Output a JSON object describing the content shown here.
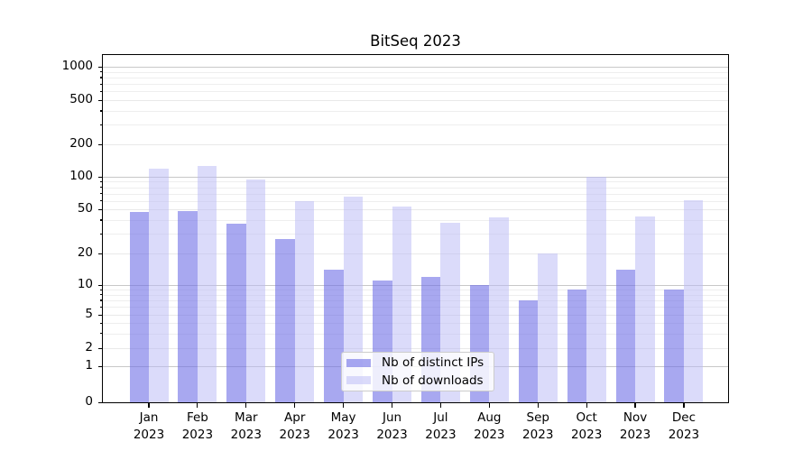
{
  "title": "BitSeq 2023",
  "colors": {
    "bar_ips": "rgba(110,110,230,0.6)",
    "bar_downloads": "rgba(183,183,245,0.5)",
    "grid_major": "#c8c8c8",
    "grid_mid": "#e9e9e9",
    "grid_minor": "#eeeeee",
    "spine": "#000000",
    "legend_border": "#cccccc"
  },
  "chart_data": {
    "type": "bar",
    "title": "BitSeq 2023",
    "categories": [
      "Jan",
      "Feb",
      "Mar",
      "Apr",
      "May",
      "Jun",
      "Jul",
      "Aug",
      "Sep",
      "Oct",
      "Nov",
      "Dec"
    ],
    "category_year": "2023",
    "series": [
      {
        "name": "Nb of distinct IPs",
        "color": "rgba(110,110,230,0.6)",
        "values": [
          47,
          48,
          37,
          27,
          14,
          11,
          12,
          10,
          7,
          9,
          14,
          9
        ]
      },
      {
        "name": "Nb of downloads",
        "color": "rgba(183,183,245,0.5)",
        "values": [
          120,
          125,
          94,
          60,
          66,
          53,
          38,
          42,
          20,
          100,
          43,
          61
        ]
      }
    ],
    "xlabel": "",
    "ylabel": "",
    "yscale": "symlog",
    "yticks": [
      0,
      1,
      2,
      5,
      10,
      20,
      50,
      100,
      200,
      500,
      1000
    ],
    "ylim": [
      0,
      1300
    ],
    "grid": true,
    "legend_position": "lower-center"
  }
}
